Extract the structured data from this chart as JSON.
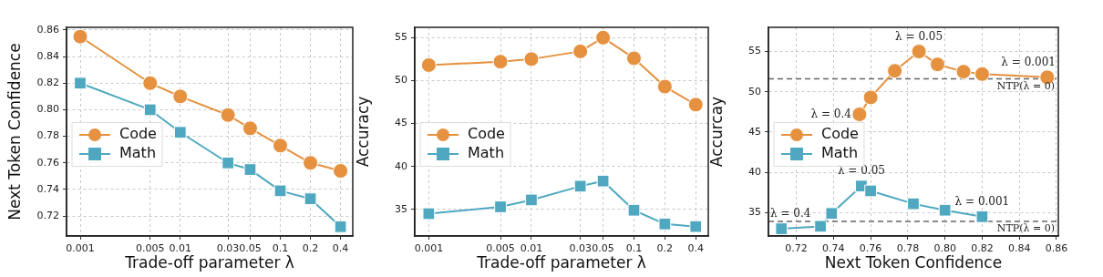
{
  "chart_data": [
    {
      "type": "line",
      "xlabel": "Trade-off parameter λ",
      "ylabel": "Next Token Confidence",
      "log": "x",
      "grid": true,
      "legend": "left",
      "xlim": [
        0.00073,
        0.53
      ],
      "xticks": [
        0.001,
        0.005,
        0.01,
        0.03,
        0.05,
        0.1,
        0.2,
        0.4
      ],
      "ylim": [
        0.705,
        0.862
      ],
      "yticks": [
        0.72,
        0.74,
        0.76,
        0.78,
        {
          "value": 0.8,
          "label": "0.80"
        },
        0.82,
        0.84,
        0.86
      ],
      "series": [
        {
          "name": "Code",
          "color": "#e5913f",
          "marker": "circle",
          "x": [
            0.001,
            0.005,
            0.01,
            0.03,
            0.05,
            0.1,
            0.2,
            0.4
          ],
          "values": [
            0.855,
            0.82,
            0.81,
            0.796,
            0.786,
            0.773,
            0.76,
            0.754
          ]
        },
        {
          "name": "Math",
          "color": "#4fa8c0",
          "marker": "square",
          "x": [
            0.001,
            0.005,
            0.01,
            0.03,
            0.05,
            0.1,
            0.2,
            0.4
          ],
          "values": [
            0.82,
            0.8,
            0.783,
            0.76,
            0.755,
            0.739,
            0.733,
            0.712
          ]
        }
      ]
    },
    {
      "type": "line",
      "xlabel": "Trade-off parameter λ",
      "ylabel": "Accuracy",
      "log": "x",
      "grid": true,
      "legend": "left",
      "xlim": [
        0.00073,
        0.53
      ],
      "xticks": [
        0.001,
        0.005,
        0.01,
        0.03,
        0.05,
        0.1,
        0.2,
        0.4
      ],
      "ylim": [
        31.9,
        56.2
      ],
      "yticks": [
        35,
        40,
        45,
        50,
        55
      ],
      "series": [
        {
          "name": "Code",
          "color": "#e5913f",
          "marker": "circle",
          "x": [
            0.001,
            0.005,
            0.01,
            0.03,
            0.05,
            0.1,
            0.2,
            0.4
          ],
          "values": [
            51.8,
            52.2,
            52.5,
            53.4,
            55.0,
            52.6,
            49.3,
            47.2
          ]
        },
        {
          "name": "Math",
          "color": "#4fa8c0",
          "marker": "square",
          "x": [
            0.001,
            0.005,
            0.01,
            0.03,
            0.05,
            0.1,
            0.2,
            0.4
          ],
          "values": [
            34.5,
            35.3,
            36.1,
            37.7,
            38.3,
            34.9,
            33.3,
            33.0
          ]
        }
      ]
    },
    {
      "type": "line",
      "xlabel": "Next Token Confidence",
      "ylabel": "Accurcay",
      "grid": true,
      "legend": "left",
      "xlim": [
        0.705,
        0.861
      ],
      "xticks": [
        0.72,
        0.74,
        0.76,
        0.78,
        {
          "value": 0.8,
          "label": "0.80"
        },
        0.82,
        0.84,
        0.86
      ],
      "ylim": [
        32.1,
        58
      ],
      "yticks": [
        35,
        40,
        45,
        50,
        55
      ],
      "series": [
        {
          "name": "Code",
          "color": "#e5913f",
          "marker": "circle",
          "x": [
            0.754,
            0.76,
            0.773,
            0.786,
            0.796,
            0.81,
            0.82,
            0.855
          ],
          "values": [
            47.2,
            49.3,
            52.6,
            55.0,
            53.4,
            52.5,
            52.2,
            51.8
          ]
        },
        {
          "name": "Math",
          "color": "#4fa8c0",
          "marker": "square",
          "x": [
            0.712,
            0.733,
            0.739,
            0.755,
            0.76,
            0.783,
            0.8,
            0.82
          ],
          "values": [
            33.0,
            33.3,
            34.9,
            38.3,
            37.7,
            36.1,
            35.3,
            34.5
          ]
        }
      ],
      "ref_lines": [
        {
          "axis": "y",
          "value": 51.6,
          "color": "#666666",
          "line_style": "dashed"
        },
        {
          "axis": "y",
          "value": 33.9,
          "color": "#666666",
          "line_style": "dashed"
        }
      ],
      "annotations": [
        {
          "text": "λ = 0.05",
          "x": 0.786,
          "y": 55.0
        },
        {
          "text": "λ = 0.001",
          "x": 0.855,
          "y": 51.8
        },
        {
          "text": "λ = 0.4",
          "x": 0.754,
          "y": 47.2
        },
        {
          "text": "λ = 0.05",
          "x": 0.755,
          "y": 38.3
        },
        {
          "text": "λ = 0.001",
          "x": 0.82,
          "y": 34.5
        },
        {
          "text": "λ = 0.4",
          "x": 0.712,
          "y": 33.0
        },
        {
          "text": "NTP(λ = 0)",
          "y": 51.6
        },
        {
          "text": "NTP(λ = 0)",
          "y": 33.9
        }
      ]
    }
  ]
}
